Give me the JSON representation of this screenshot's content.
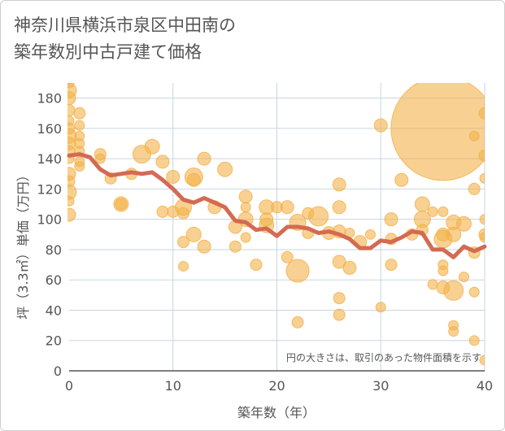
{
  "chart_data": {
    "type": "scatter",
    "title": "神奈川県横浜市泉区中田南の\n築年数別中古戸建て価格",
    "xlabel": "築年数（年）",
    "ylabel": "坪（3.3㎡）単価（万円）",
    "xlim": [
      0,
      40
    ],
    "ylim": [
      0,
      190
    ],
    "x_ticks": [
      0,
      10,
      20,
      30,
      40
    ],
    "y_ticks": [
      0,
      20,
      40,
      60,
      80,
      100,
      120,
      140,
      160,
      180
    ],
    "grid": true,
    "note": "円の大きさは、取引のあった物件面積を示す",
    "colors": {
      "bubble": "#f3b24a",
      "line": "#d46a52",
      "grid": "#c9d5e0"
    },
    "bubbles": [
      {
        "x": 0,
        "y": 190,
        "s": 6
      },
      {
        "x": 0,
        "y": 185,
        "s": 9
      },
      {
        "x": 0,
        "y": 180,
        "s": 8
      },
      {
        "x": 0,
        "y": 172,
        "s": 7
      },
      {
        "x": 0,
        "y": 165,
        "s": 6
      },
      {
        "x": 0,
        "y": 160,
        "s": 7
      },
      {
        "x": 0,
        "y": 155,
        "s": 9
      },
      {
        "x": 0,
        "y": 150,
        "s": 8
      },
      {
        "x": 0,
        "y": 145,
        "s": 7
      },
      {
        "x": 0,
        "y": 140,
        "s": 6
      },
      {
        "x": 0,
        "y": 130,
        "s": 8
      },
      {
        "x": 0,
        "y": 125,
        "s": 7
      },
      {
        "x": 0,
        "y": 118,
        "s": 9
      },
      {
        "x": 0,
        "y": 112,
        "s": 6
      },
      {
        "x": 0,
        "y": 103,
        "s": 8
      },
      {
        "x": 1,
        "y": 170,
        "s": 7
      },
      {
        "x": 1,
        "y": 162,
        "s": 6
      },
      {
        "x": 1,
        "y": 155,
        "s": 6
      },
      {
        "x": 1,
        "y": 150,
        "s": 6
      },
      {
        "x": 1,
        "y": 145,
        "s": 6
      },
      {
        "x": 1,
        "y": 138,
        "s": 6
      },
      {
        "x": 1,
        "y": 135,
        "s": 6
      },
      {
        "x": 3,
        "y": 143,
        "s": 7
      },
      {
        "x": 3,
        "y": 140,
        "s": 6
      },
      {
        "x": 4,
        "y": 127,
        "s": 7
      },
      {
        "x": 5,
        "y": 110,
        "s": 9
      },
      {
        "x": 5,
        "y": 110,
        "s": 7
      },
      {
        "x": 6,
        "y": 130,
        "s": 7
      },
      {
        "x": 7,
        "y": 143,
        "s": 11
      },
      {
        "x": 8,
        "y": 148,
        "s": 9
      },
      {
        "x": 9,
        "y": 138,
        "s": 8
      },
      {
        "x": 9,
        "y": 105,
        "s": 7
      },
      {
        "x": 10,
        "y": 128,
        "s": 8
      },
      {
        "x": 10,
        "y": 105,
        "s": 7
      },
      {
        "x": 11,
        "y": 108,
        "s": 10
      },
      {
        "x": 11,
        "y": 104,
        "s": 7
      },
      {
        "x": 11,
        "y": 85,
        "s": 7
      },
      {
        "x": 11,
        "y": 69,
        "s": 6
      },
      {
        "x": 12,
        "y": 128,
        "s": 11
      },
      {
        "x": 12,
        "y": 126,
        "s": 8
      },
      {
        "x": 12,
        "y": 90,
        "s": 9
      },
      {
        "x": 13,
        "y": 140,
        "s": 8
      },
      {
        "x": 13,
        "y": 82,
        "s": 8
      },
      {
        "x": 14,
        "y": 108,
        "s": 8
      },
      {
        "x": 15,
        "y": 133,
        "s": 9
      },
      {
        "x": 16,
        "y": 95,
        "s": 8
      },
      {
        "x": 16,
        "y": 82,
        "s": 7
      },
      {
        "x": 17,
        "y": 115,
        "s": 8
      },
      {
        "x": 17,
        "y": 108,
        "s": 6
      },
      {
        "x": 17,
        "y": 100,
        "s": 9
      },
      {
        "x": 17,
        "y": 88,
        "s": 6
      },
      {
        "x": 18,
        "y": 70,
        "s": 7
      },
      {
        "x": 19,
        "y": 108,
        "s": 9
      },
      {
        "x": 19,
        "y": 100,
        "s": 8
      },
      {
        "x": 19,
        "y": 96,
        "s": 9
      },
      {
        "x": 20,
        "y": 108,
        "s": 7
      },
      {
        "x": 21,
        "y": 108,
        "s": 8
      },
      {
        "x": 21,
        "y": 75,
        "s": 7
      },
      {
        "x": 22,
        "y": 98,
        "s": 10
      },
      {
        "x": 22,
        "y": 66,
        "s": 14
      },
      {
        "x": 22,
        "y": 32,
        "s": 7
      },
      {
        "x": 23,
        "y": 104,
        "s": 7
      },
      {
        "x": 23,
        "y": 91,
        "s": 7
      },
      {
        "x": 24,
        "y": 102,
        "s": 12
      },
      {
        "x": 25,
        "y": 91,
        "s": 8
      },
      {
        "x": 26,
        "y": 123,
        "s": 8
      },
      {
        "x": 26,
        "y": 108,
        "s": 8
      },
      {
        "x": 26,
        "y": 92,
        "s": 8
      },
      {
        "x": 26,
        "y": 72,
        "s": 8
      },
      {
        "x": 26,
        "y": 48,
        "s": 7
      },
      {
        "x": 26,
        "y": 37,
        "s": 7
      },
      {
        "x": 27,
        "y": 91,
        "s": 6
      },
      {
        "x": 27,
        "y": 68,
        "s": 8
      },
      {
        "x": 28,
        "y": 85,
        "s": 8
      },
      {
        "x": 29,
        "y": 90,
        "s": 6
      },
      {
        "x": 30,
        "y": 162,
        "s": 8
      },
      {
        "x": 30,
        "y": 42,
        "s": 6
      },
      {
        "x": 31,
        "y": 100,
        "s": 8
      },
      {
        "x": 31,
        "y": 87,
        "s": 7
      },
      {
        "x": 31,
        "y": 70,
        "s": 7
      },
      {
        "x": 32,
        "y": 126,
        "s": 8
      },
      {
        "x": 33,
        "y": 90,
        "s": 7
      },
      {
        "x": 34,
        "y": 110,
        "s": 9
      },
      {
        "x": 34,
        "y": 100,
        "s": 10
      },
      {
        "x": 34,
        "y": 93,
        "s": 7
      },
      {
        "x": 35,
        "y": 105,
        "s": 6
      },
      {
        "x": 35,
        "y": 57,
        "s": 6
      },
      {
        "x": 36,
        "y": 160,
        "s": 64
      },
      {
        "x": 36,
        "y": 105,
        "s": 6
      },
      {
        "x": 36,
        "y": 90,
        "s": 8
      },
      {
        "x": 36,
        "y": 87,
        "s": 11
      },
      {
        "x": 36,
        "y": 70,
        "s": 6
      },
      {
        "x": 36,
        "y": 66,
        "s": 6
      },
      {
        "x": 36,
        "y": 55,
        "s": 8
      },
      {
        "x": 37,
        "y": 98,
        "s": 9
      },
      {
        "x": 37,
        "y": 90,
        "s": 9
      },
      {
        "x": 37,
        "y": 53,
        "s": 12
      },
      {
        "x": 37,
        "y": 30,
        "s": 6
      },
      {
        "x": 37,
        "y": 26,
        "s": 6
      },
      {
        "x": 38,
        "y": 97,
        "s": 9
      },
      {
        "x": 38,
        "y": 62,
        "s": 6
      },
      {
        "x": 39,
        "y": 155,
        "s": 6
      },
      {
        "x": 39,
        "y": 120,
        "s": 7
      },
      {
        "x": 39,
        "y": 78,
        "s": 7
      },
      {
        "x": 39,
        "y": 52,
        "s": 6
      },
      {
        "x": 39,
        "y": 20,
        "s": 6
      },
      {
        "x": 40,
        "y": 170,
        "s": 7
      },
      {
        "x": 40,
        "y": 142,
        "s": 7
      },
      {
        "x": 40,
        "y": 127,
        "s": 6
      },
      {
        "x": 40,
        "y": 100,
        "s": 6
      },
      {
        "x": 40,
        "y": 90,
        "s": 7
      },
      {
        "x": 40,
        "y": 88,
        "s": 6
      },
      {
        "x": 40,
        "y": 7,
        "s": 6
      }
    ],
    "trend": {
      "x": [
        0,
        1,
        2,
        3,
        4,
        5,
        6,
        7,
        8,
        9,
        10,
        11,
        12,
        13,
        14,
        15,
        16,
        17,
        18,
        19,
        20,
        21,
        22,
        23,
        24,
        25,
        26,
        27,
        28,
        29,
        30,
        31,
        32,
        33,
        34,
        35,
        36,
        37,
        38,
        39,
        40
      ],
      "y": [
        142,
        143,
        141,
        133,
        129,
        130,
        131,
        130,
        131,
        126,
        120,
        113,
        111,
        114,
        111,
        108,
        99,
        98,
        93,
        94,
        89,
        95,
        95,
        94,
        91,
        92,
        90,
        87,
        81,
        81,
        86,
        85,
        88,
        92,
        91,
        80,
        80,
        75,
        82,
        79,
        82
      ]
    }
  }
}
